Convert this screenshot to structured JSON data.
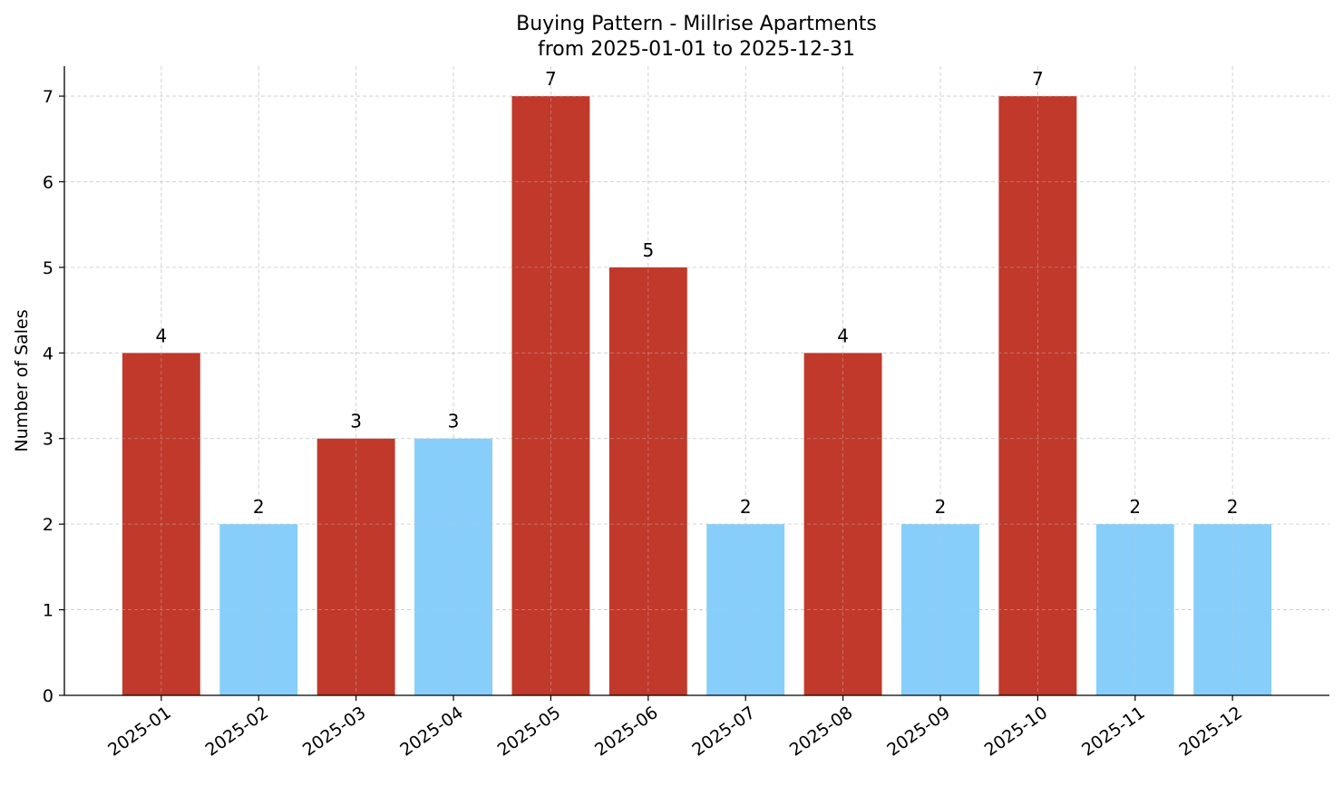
{
  "chart_data": {
    "type": "bar",
    "title": "Buying Pattern - Millrise Apartments",
    "subtitle": "from 2025-01-01 to 2025-12-31",
    "xlabel": "",
    "ylabel": "Number of Sales",
    "categories": [
      "2025-01",
      "2025-02",
      "2025-03",
      "2025-04",
      "2025-05",
      "2025-06",
      "2025-07",
      "2025-08",
      "2025-09",
      "2025-10",
      "2025-11",
      "2025-12"
    ],
    "values": [
      4,
      2,
      3,
      3,
      7,
      5,
      2,
      4,
      2,
      7,
      2,
      2
    ],
    "bar_colors": [
      "#c0392b",
      "#87cefa",
      "#c0392b",
      "#87cefa",
      "#c0392b",
      "#c0392b",
      "#87cefa",
      "#c0392b",
      "#87cefa",
      "#c0392b",
      "#87cefa",
      "#87cefa"
    ],
    "yticks": [
      0,
      1,
      2,
      3,
      4,
      5,
      6,
      7
    ],
    "ylim": [
      0,
      7.35
    ],
    "grid": true,
    "data_labels": true
  }
}
